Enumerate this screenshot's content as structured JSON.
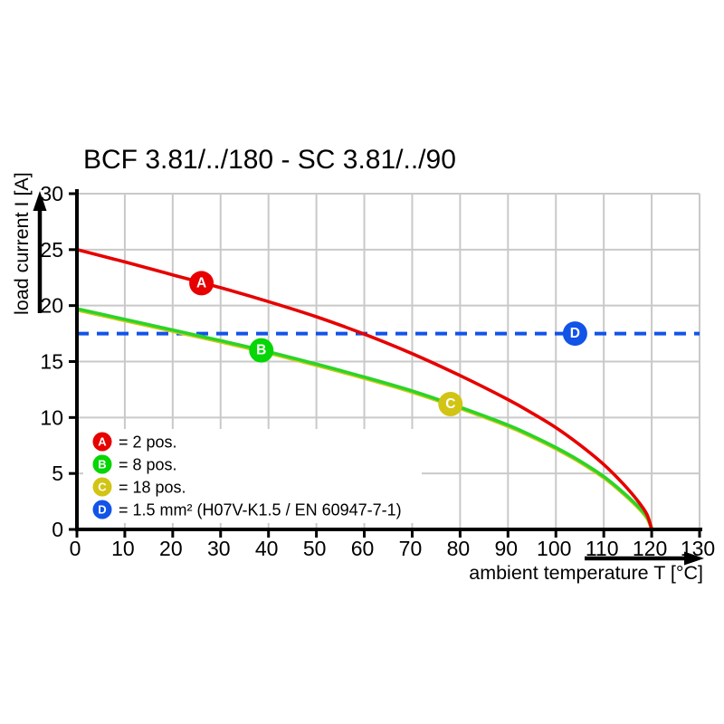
{
  "chart_data": {
    "type": "line",
    "title": "BCF 3.81/../180 - SC 3.81/../90",
    "xlabel": "ambient temperature T [°C]",
    "ylabel": "load current I [A]",
    "xlim": [
      0,
      130
    ],
    "ylim": [
      0,
      30
    ],
    "x_ticks": [
      0,
      10,
      20,
      30,
      40,
      50,
      60,
      70,
      80,
      90,
      100,
      110,
      120,
      130
    ],
    "y_ticks": [
      0,
      5,
      10,
      15,
      20,
      25,
      30
    ],
    "grid": true,
    "grid_color": "#c9c9c9",
    "axis_color": "#000000",
    "series": [
      {
        "id": "C",
        "name": "18 pos.",
        "color": "#cfc916",
        "style": "solid",
        "points": [
          [
            0,
            19.6
          ],
          [
            10,
            18.65
          ],
          [
            20,
            17.7
          ],
          [
            30,
            16.75
          ],
          [
            40,
            15.75
          ],
          [
            50,
            14.65
          ],
          [
            60,
            13.5
          ],
          [
            70,
            12.25
          ],
          [
            80,
            10.8
          ],
          [
            90,
            9.2
          ],
          [
            95,
            8.25
          ],
          [
            100,
            7.2
          ],
          [
            105,
            6.0
          ],
          [
            110,
            4.6
          ],
          [
            114,
            3.2
          ],
          [
            117,
            2.0
          ],
          [
            119,
            1.0
          ],
          [
            120,
            0
          ]
        ]
      },
      {
        "id": "B",
        "name": "8 pos.",
        "color": "#2ad42a",
        "style": "solid",
        "points": [
          [
            0,
            19.72
          ],
          [
            10,
            18.77
          ],
          [
            20,
            17.82
          ],
          [
            30,
            16.87
          ],
          [
            40,
            15.87
          ],
          [
            50,
            14.77
          ],
          [
            60,
            13.62
          ],
          [
            70,
            12.37
          ],
          [
            80,
            10.92
          ],
          [
            90,
            9.32
          ],
          [
            95,
            8.37
          ],
          [
            100,
            7.32
          ],
          [
            105,
            6.12
          ],
          [
            110,
            4.72
          ],
          [
            114,
            3.32
          ],
          [
            117,
            2.12
          ],
          [
            119,
            1.12
          ],
          [
            120,
            0.1
          ]
        ]
      },
      {
        "id": "A",
        "name": "2 pos.",
        "color": "#e60000",
        "style": "solid",
        "points": [
          [
            0,
            25
          ],
          [
            10,
            23.9
          ],
          [
            20,
            22.75
          ],
          [
            30,
            21.6
          ],
          [
            40,
            20.35
          ],
          [
            50,
            19.0
          ],
          [
            60,
            17.45
          ],
          [
            70,
            15.7
          ],
          [
            80,
            13.75
          ],
          [
            90,
            11.6
          ],
          [
            95,
            10.4
          ],
          [
            100,
            9.1
          ],
          [
            105,
            7.55
          ],
          [
            110,
            5.8
          ],
          [
            114,
            4.1
          ],
          [
            117,
            2.6
          ],
          [
            119,
            1.35
          ],
          [
            120,
            0
          ]
        ]
      },
      {
        "id": "D",
        "name": "1.5 mm² (H07V-K1.5 / EN 60947-7-1)",
        "color": "#1253e8",
        "style": "dashed",
        "points": [
          [
            0,
            17.5
          ],
          [
            130,
            17.5
          ]
        ]
      }
    ],
    "markers": [
      {
        "label": "A",
        "color": "#e60000",
        "x": 26,
        "y": 22
      },
      {
        "label": "B",
        "color": "#06d506",
        "x": 38.5,
        "y": 16
      },
      {
        "label": "C",
        "color": "#d2c414",
        "x": 78,
        "y": 11.2
      },
      {
        "label": "D",
        "color": "#1253e8",
        "x": 104,
        "y": 17.5
      }
    ],
    "legend": {
      "position": "bottom-left",
      "items": [
        {
          "key": "A",
          "color": "#e60000",
          "label": "= 2 pos."
        },
        {
          "key": "B",
          "color": "#06d506",
          "label": "= 8 pos."
        },
        {
          "key": "C",
          "color": "#d2c414",
          "label": "= 18 pos."
        },
        {
          "key": "D",
          "color": "#1253e8",
          "label": "= 1.5 mm² (H07V-K1.5 / EN 60947-7-1)"
        }
      ]
    }
  }
}
